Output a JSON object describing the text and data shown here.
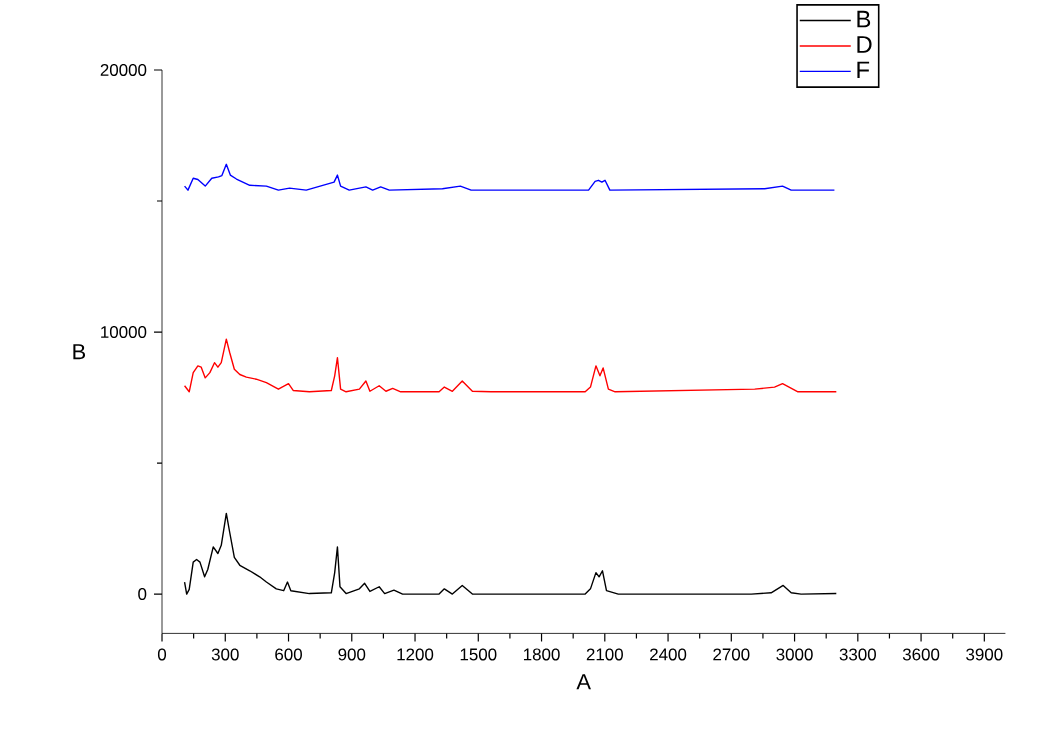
{
  "chart_data": {
    "type": "line",
    "xlabel": "A",
    "ylabel": "B",
    "xlim": [
      0,
      4000
    ],
    "ylim": [
      -1500,
      20000
    ],
    "xticks": [
      0,
      300,
      600,
      900,
      1200,
      1500,
      1800,
      2100,
      2400,
      2700,
      3000,
      3300,
      3600,
      3900
    ],
    "yticks": [
      0,
      10000,
      20000
    ],
    "legend": "top right",
    "grid": false,
    "marker": "none",
    "line_style": "solid",
    "series": [
      {
        "name": "B",
        "color": "#000000",
        "x": [
          107,
          117,
          129,
          148,
          164,
          180,
          202,
          217,
          243,
          265,
          281,
          305,
          321,
          343,
          369,
          416,
          463,
          495,
          542,
          577,
          595,
          611,
          699,
          803,
          819,
          832,
          844,
          873,
          936,
          961,
          986,
          1030,
          1056,
          1100,
          1141,
          1314,
          1339,
          1377,
          1424,
          1472,
          2007,
          2032,
          2058,
          2073,
          2089,
          2108,
          2164,
          2795,
          2889,
          2946,
          2984,
          3031,
          3198
        ],
        "values": [
          460,
          0,
          180,
          1220,
          1320,
          1220,
          660,
          940,
          1800,
          1550,
          1860,
          3080,
          2360,
          1400,
          1100,
          890,
          660,
          460,
          200,
          130,
          460,
          130,
          20,
          50,
          820,
          1800,
          280,
          20,
          200,
          410,
          100,
          280,
          20,
          150,
          0,
          0,
          200,
          0,
          330,
          0,
          0,
          200,
          820,
          660,
          890,
          130,
          0,
          0,
          50,
          330,
          50,
          0,
          20
        ]
      },
      {
        "name": "D",
        "color": "#ff0000",
        "x": [
          107,
          129,
          148,
          170,
          186,
          205,
          227,
          249,
          265,
          281,
          305,
          321,
          343,
          369,
          400,
          447,
          495,
          552,
          600,
          622,
          699,
          803,
          819,
          832,
          847,
          873,
          936,
          967,
          986,
          1030,
          1062,
          1094,
          1132,
          1314,
          1339,
          1377,
          1424,
          1472,
          1560,
          2007,
          2032,
          2058,
          2077,
          2092,
          2117,
          2149,
          2811,
          2905,
          2943,
          3016,
          3198
        ],
        "values": [
          7950,
          7720,
          8450,
          8710,
          8660,
          8250,
          8450,
          8830,
          8660,
          8830,
          9730,
          9220,
          8580,
          8380,
          8280,
          8200,
          8070,
          7820,
          8030,
          7770,
          7720,
          7770,
          8330,
          9020,
          7820,
          7720,
          7820,
          8130,
          7740,
          7950,
          7740,
          7850,
          7720,
          7720,
          7900,
          7740,
          8130,
          7740,
          7720,
          7720,
          7900,
          8710,
          8330,
          8630,
          7820,
          7720,
          7820,
          7900,
          8030,
          7720,
          7720
        ]
      },
      {
        "name": "F",
        "color": "#0000ff",
        "x": [
          107,
          123,
          148,
          170,
          205,
          236,
          268,
          284,
          305,
          324,
          353,
          416,
          495,
          552,
          605,
          684,
          816,
          832,
          847,
          888,
          967,
          999,
          1037,
          1078,
          1330,
          1415,
          1466,
          2023,
          2054,
          2070,
          2086,
          2101,
          2124,
          2858,
          2943,
          2984,
          3189
        ],
        "values": [
          15570,
          15415,
          15870,
          15820,
          15570,
          15870,
          15920,
          15970,
          16400,
          15990,
          15840,
          15600,
          15570,
          15415,
          15490,
          15415,
          15720,
          15990,
          15570,
          15415,
          15540,
          15415,
          15540,
          15415,
          15470,
          15570,
          15415,
          15415,
          15750,
          15790,
          15720,
          15790,
          15415,
          15470,
          15570,
          15415,
          15415
        ]
      }
    ]
  }
}
